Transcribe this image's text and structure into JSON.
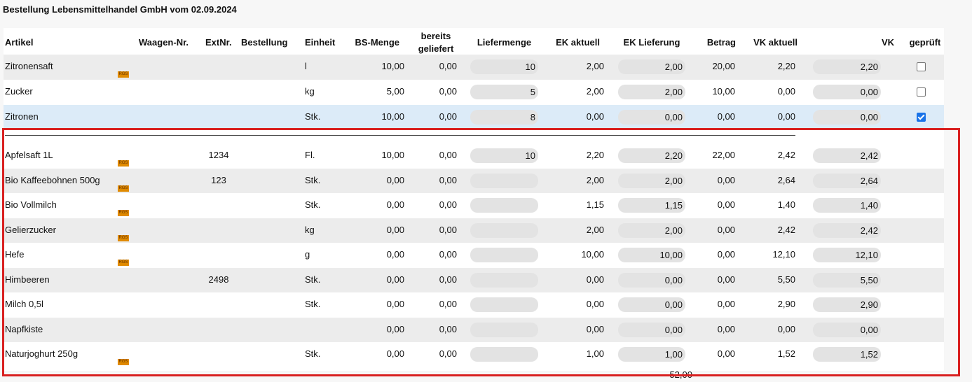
{
  "header": {
    "title": "Bestellung Lebensmittelhandel GmbH vom 02.09.2024"
  },
  "table": {
    "columns": [
      "Artikel",
      "Waagen-Nr.",
      "ExtNr.",
      "Bestellung",
      "Einheit",
      "BS-Menge",
      "bereits geliefert",
      "Liefermenge",
      "EK aktuell",
      "EK Lieferung",
      "Betrag",
      "VK aktuell",
      "VK",
      "geprüft"
    ],
    "groups": [
      {
        "rows": [
          {
            "name": "Zitronensaft",
            "badge": "RGS",
            "einheit": "l",
            "bs": "10,00",
            "geliefert": "0,00",
            "liefer": "10",
            "ek": "2,00",
            "ekl": "2,00",
            "betrag": "20,00",
            "vka": "2,20",
            "vk": "2,20",
            "checked": false
          },
          {
            "name": "Zucker",
            "einheit": "kg",
            "bs": "5,00",
            "geliefert": "0,00",
            "liefer": "5",
            "ek": "2,00",
            "ekl": "2,00",
            "betrag": "10,00",
            "vka": "0,00",
            "vk": "0,00",
            "checked": false
          },
          {
            "name": "Zitronen",
            "einheit": "Stk.",
            "bs": "10,00",
            "geliefert": "0,00",
            "liefer": "8",
            "ek": "0,00",
            "ekl": "0,00",
            "betrag": "0,00",
            "vka": "0,00",
            "vk": "0,00",
            "checked": true
          }
        ]
      },
      {
        "rows": [
          {
            "name": "Apfelsaft 1L",
            "badge": "RGS",
            "ext": "1234",
            "einheit": "Fl.",
            "bs": "10,00",
            "geliefert": "0,00",
            "liefer": "10",
            "ek": "2,20",
            "ekl": "2,20",
            "betrag": "22,00",
            "vka": "2,42",
            "vk": "2,42"
          },
          {
            "name": "Bio Kaffeebohnen 500g",
            "badge": "RGS",
            "ext": "123",
            "einheit": "Stk.",
            "bs": "0,00",
            "geliefert": "0,00",
            "ek": "2,00",
            "ekl": "2,00",
            "betrag": "0,00",
            "vka": "2,64",
            "vk": "2,64"
          },
          {
            "name": "Bio Vollmilch",
            "badge": "RGS",
            "einheit": "Stk.",
            "bs": "0,00",
            "geliefert": "0,00",
            "ek": "1,15",
            "ekl": "1,15",
            "betrag": "0,00",
            "vka": "1,40",
            "vk": "1,40"
          },
          {
            "name": "Gelierzucker",
            "badge": "RGS",
            "einheit": "kg",
            "bs": "0,00",
            "geliefert": "0,00",
            "ek": "2,00",
            "ekl": "2,00",
            "betrag": "0,00",
            "vka": "2,42",
            "vk": "2,42"
          },
          {
            "name": "Hefe",
            "badge": "RGS",
            "einheit": "g",
            "bs": "0,00",
            "geliefert": "0,00",
            "ek": "10,00",
            "ekl": "10,00",
            "betrag": "0,00",
            "vka": "12,10",
            "vk": "12,10"
          },
          {
            "name": "Himbeeren",
            "ext": "2498",
            "einheit": "Stk.",
            "bs": "0,00",
            "geliefert": "0,00",
            "ek": "0,00",
            "ekl": "0,00",
            "betrag": "0,00",
            "vka": "5,50",
            "vk": "5,50"
          },
          {
            "name": "Milch 0,5l",
            "einheit": "Stk.",
            "bs": "0,00",
            "geliefert": "0,00",
            "ek": "0,00",
            "ekl": "0,00",
            "betrag": "0,00",
            "vka": "2,90",
            "vk": "2,90"
          },
          {
            "name": "Napfkiste",
            "bs": "0,00",
            "geliefert": "0,00",
            "ek": "0,00",
            "ekl": "0,00",
            "betrag": "0,00",
            "vka": "0,00",
            "vk": "0,00"
          },
          {
            "name": "Naturjoghurt 250g",
            "badge": "RGS",
            "einheit": "Stk.",
            "bs": "0,00",
            "geliefert": "0,00",
            "ek": "1,00",
            "ekl": "1,00",
            "betrag": "0,00",
            "vka": "1,52",
            "vk": "1,52"
          }
        ]
      }
    ],
    "footer": {
      "total": "52,00"
    }
  }
}
